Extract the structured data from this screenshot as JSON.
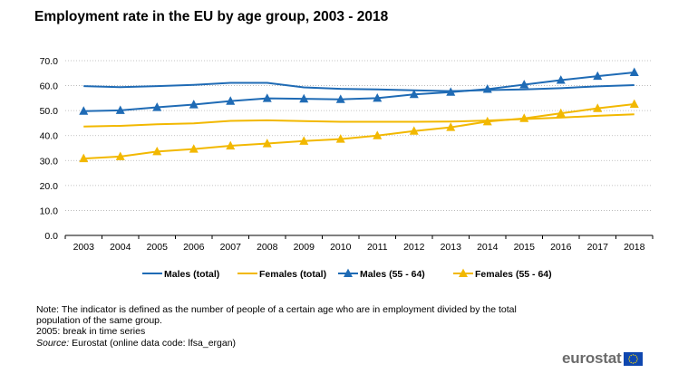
{
  "title": "Employment rate in the EU by age group, 2003 - 2018",
  "chart_data": {
    "type": "line",
    "title": "Employment rate in the EU by age group, 2003 - 2018",
    "x": [
      "2003",
      "2004",
      "2005",
      "2006",
      "2007",
      "2008",
      "2009",
      "2010",
      "2011",
      "2012",
      "2013",
      "2014",
      "2015",
      "2016",
      "2017",
      "2018"
    ],
    "ylim": [
      0,
      70
    ],
    "yticks": [
      "0.0",
      "10.0",
      "20.0",
      "30.0",
      "40.0",
      "50.0",
      "60.0",
      "70.0"
    ],
    "grid": "horizontal dotted",
    "legend_position": "bottom",
    "series": [
      {
        "name": "Males (total)",
        "color": "#1f6bb5",
        "marker": "none",
        "values": [
          59.8,
          59.4,
          59.8,
          60.3,
          61.1,
          61.1,
          59.3,
          58.7,
          58.5,
          58.1,
          57.8,
          58.2,
          58.5,
          59.0,
          59.7,
          60.2
        ]
      },
      {
        "name": "Females (total)",
        "color": "#f2b800",
        "marker": "none",
        "values": [
          43.6,
          43.9,
          44.5,
          44.9,
          45.9,
          46.1,
          45.8,
          45.5,
          45.5,
          45.5,
          45.6,
          46.0,
          46.6,
          47.2,
          47.9,
          48.5
        ]
      },
      {
        "name": "Males (55 - 64)",
        "color": "#1f6bb5",
        "marker": "triangle",
        "values": [
          49.8,
          50.1,
          51.3,
          52.4,
          53.8,
          54.9,
          54.7,
          54.5,
          55.0,
          56.5,
          57.4,
          58.6,
          60.4,
          62.2,
          63.8,
          65.3
        ]
      },
      {
        "name": "Females (55 - 64)",
        "color": "#f2b800",
        "marker": "triangle",
        "values": [
          30.8,
          31.6,
          33.6,
          34.6,
          35.9,
          36.8,
          37.8,
          38.6,
          40.0,
          41.8,
          43.3,
          45.6,
          46.9,
          48.9,
          50.9,
          52.6
        ]
      }
    ]
  },
  "notes": {
    "line1": "Note: The indicator is defined as the number of people of a certain age who are in employment divided by the total",
    "line2": "population of the same group.",
    "line3": "2005: break in time series",
    "source_label": "Source:",
    "source_text": " Eurostat (online data code: lfsa_ergan)"
  },
  "logo": {
    "text": "eurostat",
    "flag_color": "#0f47af",
    "star_color": "#ffdd00"
  }
}
